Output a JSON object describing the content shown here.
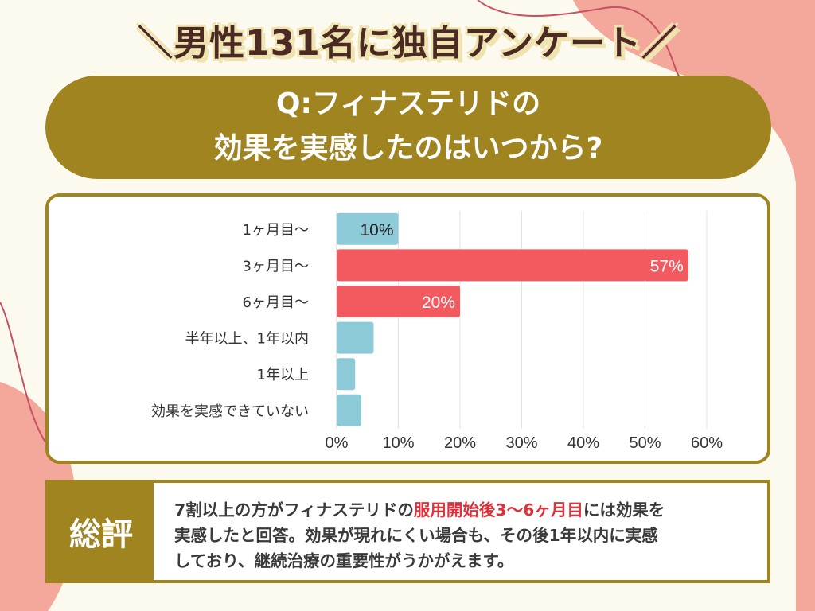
{
  "header": {
    "title": "＼男性131名に独自アンケート／"
  },
  "question": {
    "line1": "Q:フィナステリドの",
    "line2": "効果を実感したのはいつから?"
  },
  "colors": {
    "background": "#fcfaee",
    "accent_olive": "#a08420",
    "highlight_bar": "#f25a5f",
    "normal_bar": "#8ccad8",
    "blob": "#f4a89c",
    "highlight_text": "#e0303a"
  },
  "chart_data": {
    "type": "bar",
    "orientation": "horizontal",
    "categories": [
      "1ヶ月目〜",
      "3ヶ月目〜",
      "6ヶ月目〜",
      "半年以上、1年以内",
      "1年以上",
      "効果を実感できていない"
    ],
    "values": [
      10,
      57,
      20,
      6,
      3,
      4
    ],
    "data_labels": [
      "10%",
      "57%",
      "20%",
      "",
      "",
      ""
    ],
    "highlighted": [
      false,
      true,
      true,
      false,
      false,
      false
    ],
    "xlim": [
      0,
      60
    ],
    "xticks": [
      "0%",
      "10%",
      "20%",
      "30%",
      "40%",
      "50%",
      "60%"
    ],
    "grid": true
  },
  "summary": {
    "label": "総評",
    "line1_pre": "7割以上の方がフィナステリドの",
    "line1_highlight": "服用開始後3〜6ヶ月目",
    "line1_post": "には効果を",
    "line2": "実感したと回答。効果が現れにくい場合も、その後1年以内に実感",
    "line3": "しており、継続治療の重要性がうかがえます。"
  }
}
